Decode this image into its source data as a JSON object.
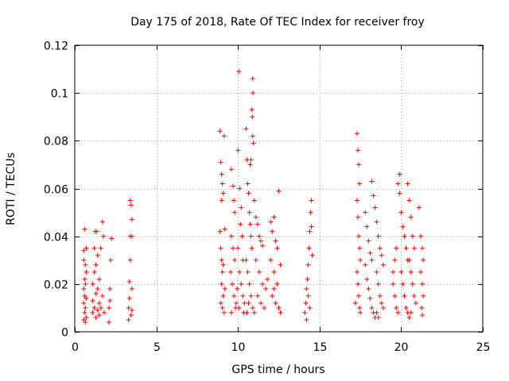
{
  "chart_data": {
    "type": "scatter",
    "title": "Day 175 of 2018, Rate Of TEC Index for receiver froy",
    "xlabel": "GPS time / hours",
    "ylabel": "ROTI / TECUs",
    "xlim": [
      0,
      25
    ],
    "ylim": [
      0,
      0.12
    ],
    "xticks": [
      0,
      5,
      10,
      15,
      20,
      25
    ],
    "xtick_labels": [
      "0",
      "5",
      "10",
      "15",
      "20",
      "25"
    ],
    "yticks": [
      0,
      0.02,
      0.04,
      0.06,
      0.08,
      0.1,
      0.12
    ],
    "ytick_labels": [
      "0",
      "0.02",
      "0.04",
      "0.06",
      "0.08",
      "0.1",
      "0.12"
    ],
    "grid": true,
    "marker": "+",
    "series": [
      {
        "name": "ROTI",
        "color": "#ff0000",
        "points": [
          [
            0.55,
            0.005
          ],
          [
            0.55,
            0.012
          ],
          [
            0.55,
            0.018
          ],
          [
            0.55,
            0.03
          ],
          [
            0.55,
            0.034
          ],
          [
            0.6,
            0.008
          ],
          [
            0.6,
            0.015
          ],
          [
            0.6,
            0.022
          ],
          [
            0.6,
            0.043
          ],
          [
            0.65,
            0.004
          ],
          [
            0.65,
            0.01
          ],
          [
            0.65,
            0.02
          ],
          [
            0.65,
            0.028
          ],
          [
            0.7,
            0.006
          ],
          [
            0.7,
            0.014
          ],
          [
            0.7,
            0.025
          ],
          [
            0.7,
            0.035
          ],
          [
            1.1,
            0.008
          ],
          [
            1.1,
            0.013
          ],
          [
            1.1,
            0.02
          ],
          [
            1.2,
            0.01
          ],
          [
            1.2,
            0.025
          ],
          [
            1.2,
            0.035
          ],
          [
            1.25,
            0.042
          ],
          [
            1.3,
            0.006
          ],
          [
            1.3,
            0.016
          ],
          [
            1.3,
            0.028
          ],
          [
            1.35,
            0.042
          ],
          [
            1.4,
            0.009
          ],
          [
            1.4,
            0.018
          ],
          [
            1.4,
            0.032
          ],
          [
            1.5,
            0.012
          ],
          [
            1.5,
            0.022
          ],
          [
            1.5,
            0.007
          ],
          [
            1.6,
            0.01
          ],
          [
            1.6,
            0.035
          ],
          [
            1.7,
            0.046
          ],
          [
            1.7,
            0.015
          ],
          [
            1.75,
            0.04
          ],
          [
            1.8,
            0.008
          ],
          [
            2.1,
            0.004
          ],
          [
            2.1,
            0.01
          ],
          [
            2.15,
            0.013
          ],
          [
            2.15,
            0.018
          ],
          [
            2.2,
            0.03
          ],
          [
            2.25,
            0.039
          ],
          [
            3.3,
            0.005
          ],
          [
            3.3,
            0.01
          ],
          [
            3.35,
            0.014
          ],
          [
            3.35,
            0.021
          ],
          [
            3.4,
            0.03
          ],
          [
            3.4,
            0.04
          ],
          [
            3.4,
            0.055
          ],
          [
            3.45,
            0.053
          ],
          [
            3.45,
            0.007
          ],
          [
            3.5,
            0.009
          ],
          [
            3.5,
            0.018
          ],
          [
            3.5,
            0.04
          ],
          [
            3.5,
            0.047
          ],
          [
            8.9,
            0.084
          ],
          [
            8.95,
            0.071
          ],
          [
            9.0,
            0.066
          ],
          [
            9.05,
            0.062
          ],
          [
            9.0,
            0.055
          ],
          [
            9.1,
            0.058
          ],
          [
            9.15,
            0.082
          ],
          [
            8.9,
            0.042
          ],
          [
            8.95,
            0.035
          ],
          [
            9.0,
            0.03
          ],
          [
            9.05,
            0.025
          ],
          [
            9.0,
            0.02
          ],
          [
            9.1,
            0.015
          ],
          [
            9.05,
            0.01
          ],
          [
            9.15,
            0.008
          ],
          [
            8.95,
            0.012
          ],
          [
            9.2,
            0.018
          ],
          [
            9.1,
            0.028
          ],
          [
            9.2,
            0.043
          ],
          [
            9.6,
            0.068
          ],
          [
            9.7,
            0.061
          ],
          [
            9.75,
            0.055
          ],
          [
            9.8,
            0.05
          ],
          [
            9.6,
            0.04
          ],
          [
            9.7,
            0.035
          ],
          [
            9.8,
            0.03
          ],
          [
            9.55,
            0.025
          ],
          [
            9.65,
            0.02
          ],
          [
            9.75,
            0.015
          ],
          [
            9.85,
            0.01
          ],
          [
            9.6,
            0.008
          ],
          [
            9.9,
            0.012
          ],
          [
            9.95,
            0.018
          ],
          [
            10.0,
            0.076
          ],
          [
            10.05,
            0.109
          ],
          [
            10.1,
            0.06
          ],
          [
            10.2,
            0.052
          ],
          [
            10.15,
            0.045
          ],
          [
            10.25,
            0.04
          ],
          [
            10.0,
            0.035
          ],
          [
            10.3,
            0.03
          ],
          [
            10.1,
            0.025
          ],
          [
            10.2,
            0.02
          ],
          [
            10.3,
            0.015
          ],
          [
            10.05,
            0.01
          ],
          [
            10.35,
            0.008
          ],
          [
            10.4,
            0.012
          ],
          [
            10.5,
            0.085
          ],
          [
            10.55,
            0.072
          ],
          [
            10.6,
            0.062
          ],
          [
            10.65,
            0.058
          ],
          [
            10.7,
            0.05
          ],
          [
            10.75,
            0.045
          ],
          [
            10.8,
            0.04
          ],
          [
            10.85,
            0.035
          ],
          [
            10.5,
            0.03
          ],
          [
            10.6,
            0.025
          ],
          [
            10.7,
            0.02
          ],
          [
            10.8,
            0.015
          ],
          [
            10.9,
            0.01
          ],
          [
            10.55,
            0.008
          ],
          [
            10.65,
            0.012
          ],
          [
            10.9,
            0.106
          ],
          [
            10.92,
            0.1
          ],
          [
            10.85,
            0.093
          ],
          [
            10.88,
            0.09
          ],
          [
            10.9,
            0.082
          ],
          [
            10.95,
            0.079
          ],
          [
            10.8,
            0.072
          ],
          [
            10.75,
            0.07
          ],
          [
            11.0,
            0.055
          ],
          [
            11.1,
            0.048
          ],
          [
            11.2,
            0.045
          ],
          [
            11.3,
            0.04
          ],
          [
            11.4,
            0.038
          ],
          [
            11.5,
            0.036
          ],
          [
            11.1,
            0.03
          ],
          [
            11.3,
            0.025
          ],
          [
            11.5,
            0.02
          ],
          [
            11.2,
            0.015
          ],
          [
            11.4,
            0.012
          ],
          [
            11.6,
            0.01
          ],
          [
            11.0,
            0.008
          ],
          [
            11.7,
            0.018
          ],
          [
            11.8,
            0.022
          ],
          [
            12.0,
            0.046
          ],
          [
            12.1,
            0.042
          ],
          [
            12.2,
            0.048
          ],
          [
            12.3,
            0.038
          ],
          [
            12.4,
            0.035
          ],
          [
            12.0,
            0.03
          ],
          [
            12.2,
            0.025
          ],
          [
            12.4,
            0.02
          ],
          [
            12.1,
            0.015
          ],
          [
            12.3,
            0.012
          ],
          [
            12.5,
            0.01
          ],
          [
            12.6,
            0.008
          ],
          [
            12.5,
            0.059
          ],
          [
            12.2,
            0.018
          ],
          [
            12.6,
            0.028
          ],
          [
            14.1,
            0.008
          ],
          [
            14.15,
            0.012
          ],
          [
            14.2,
            0.018
          ],
          [
            14.25,
            0.022
          ],
          [
            14.3,
            0.028
          ],
          [
            14.35,
            0.035
          ],
          [
            14.4,
            0.042
          ],
          [
            14.45,
            0.05
          ],
          [
            14.5,
            0.055
          ],
          [
            14.5,
            0.044
          ],
          [
            14.2,
            0.005
          ],
          [
            14.4,
            0.01
          ],
          [
            14.55,
            0.032
          ],
          [
            14.3,
            0.015
          ],
          [
            17.3,
            0.083
          ],
          [
            17.35,
            0.076
          ],
          [
            17.4,
            0.07
          ],
          [
            17.45,
            0.062
          ],
          [
            17.3,
            0.055
          ],
          [
            17.35,
            0.048
          ],
          [
            17.4,
            0.04
          ],
          [
            17.45,
            0.035
          ],
          [
            17.5,
            0.03
          ],
          [
            17.3,
            0.025
          ],
          [
            17.35,
            0.02
          ],
          [
            17.4,
            0.015
          ],
          [
            17.45,
            0.01
          ],
          [
            17.5,
            0.008
          ],
          [
            17.2,
            0.012
          ],
          [
            17.8,
            0.05
          ],
          [
            17.9,
            0.044
          ],
          [
            18.0,
            0.038
          ],
          [
            18.1,
            0.033
          ],
          [
            18.2,
            0.03
          ],
          [
            17.8,
            0.028
          ],
          [
            17.9,
            0.022
          ],
          [
            18.0,
            0.018
          ],
          [
            18.1,
            0.014
          ],
          [
            18.2,
            0.01
          ],
          [
            18.3,
            0.008
          ],
          [
            18.4,
            0.006
          ],
          [
            18.2,
            0.063
          ],
          [
            18.3,
            0.057
          ],
          [
            18.4,
            0.052
          ],
          [
            18.5,
            0.046
          ],
          [
            18.6,
            0.04
          ],
          [
            18.7,
            0.035
          ],
          [
            18.8,
            0.032
          ],
          [
            18.9,
            0.028
          ],
          [
            18.5,
            0.025
          ],
          [
            18.6,
            0.02
          ],
          [
            18.7,
            0.015
          ],
          [
            18.8,
            0.012
          ],
          [
            18.9,
            0.01
          ],
          [
            18.6,
            0.006
          ],
          [
            18.5,
            0.008
          ],
          [
            19.5,
            0.025
          ],
          [
            19.6,
            0.03
          ],
          [
            19.7,
            0.035
          ],
          [
            19.8,
            0.062
          ],
          [
            19.9,
            0.058
          ],
          [
            19.5,
            0.02
          ],
          [
            19.6,
            0.015
          ],
          [
            19.7,
            0.01
          ],
          [
            19.8,
            0.008
          ],
          [
            19.9,
            0.066
          ],
          [
            20.0,
            0.05
          ],
          [
            20.1,
            0.044
          ],
          [
            20.2,
            0.04
          ],
          [
            20.3,
            0.035
          ],
          [
            20.4,
            0.03
          ],
          [
            20.0,
            0.025
          ],
          [
            20.1,
            0.02
          ],
          [
            20.2,
            0.015
          ],
          [
            20.3,
            0.01
          ],
          [
            20.4,
            0.008
          ],
          [
            20.5,
            0.006
          ],
          [
            20.4,
            0.062
          ],
          [
            20.5,
            0.055
          ],
          [
            20.6,
            0.048
          ],
          [
            20.7,
            0.04
          ],
          [
            20.8,
            0.035
          ],
          [
            20.5,
            0.03
          ],
          [
            20.6,
            0.025
          ],
          [
            20.7,
            0.02
          ],
          [
            20.8,
            0.015
          ],
          [
            20.9,
            0.012
          ],
          [
            20.6,
            0.008
          ],
          [
            21.1,
            0.052
          ],
          [
            21.2,
            0.04
          ],
          [
            21.3,
            0.035
          ],
          [
            21.35,
            0.03
          ],
          [
            21.2,
            0.025
          ],
          [
            21.3,
            0.02
          ],
          [
            21.35,
            0.015
          ],
          [
            21.25,
            0.01
          ],
          [
            21.3,
            0.007
          ]
        ]
      }
    ]
  }
}
